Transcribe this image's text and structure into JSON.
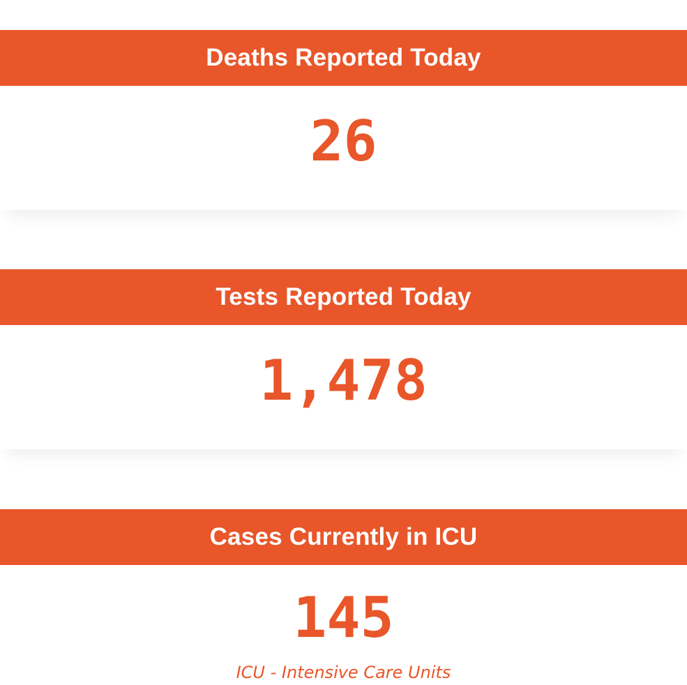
{
  "stats": [
    {
      "title": "Deaths Reported Today",
      "value": "26"
    },
    {
      "title": "Tests Reported Today",
      "value": "1,478"
    },
    {
      "title": "Cases Currently in ICU",
      "value": "145",
      "note": "ICU - Intensive Care Units"
    }
  ],
  "colors": {
    "accent": "#e8562a",
    "background": "#ffffff",
    "header_text": "#ffffff"
  }
}
